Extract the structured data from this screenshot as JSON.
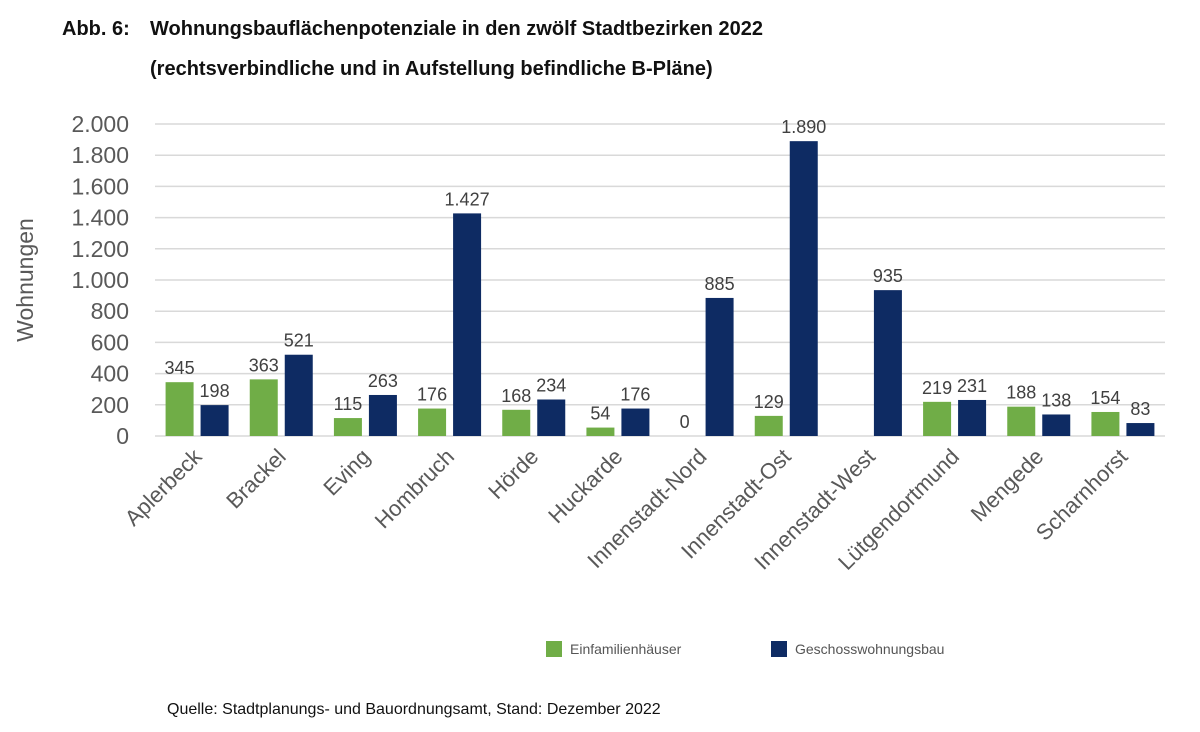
{
  "header": {
    "figure_label": "Abb. 6:",
    "title": "Wohnungsbauflächenpotenziale in den zwölf Stadtbezirken 2022",
    "subtitle": "(rechtsverbindliche und in Aufstellung befindliche B-Pläne)"
  },
  "chart_data": {
    "type": "bar",
    "ylabel": "Wohnungen",
    "xlabel": "",
    "ylim": [
      0,
      2000
    ],
    "yticks": [
      0,
      200,
      400,
      600,
      800,
      1000,
      1200,
      1400,
      1600,
      1800,
      2000
    ],
    "ytick_labels": [
      "0",
      "200",
      "400",
      "600",
      "800",
      "1.000",
      "1.200",
      "1.400",
      "1.600",
      "1.800",
      "2.000"
    ],
    "grid": true,
    "legend_position": "bottom",
    "categories": [
      "Aplerbeck",
      "Brackel",
      "Eving",
      "Hombruch",
      "Hörde",
      "Huckarde",
      "Innenstadt-Nord",
      "Innenstadt-Ost",
      "Innenstadt-West",
      "Lütgendortmund",
      "Mengede",
      "Scharnhorst"
    ],
    "series": [
      {
        "name": "Einfamilienhäuser",
        "color": "#70ad47",
        "values": [
          345,
          363,
          115,
          176,
          168,
          54,
          0,
          129,
          null,
          219,
          188,
          154
        ],
        "labels": [
          "345",
          "363",
          "115",
          "176",
          "168",
          "54",
          "0",
          "129",
          "",
          "219",
          "188",
          "154"
        ]
      },
      {
        "name": "Geschosswohnungsbau",
        "color": "#0e2b63",
        "values": [
          198,
          521,
          263,
          1427,
          234,
          176,
          885,
          1890,
          935,
          231,
          138,
          83
        ],
        "labels": [
          "198",
          "521",
          "263",
          "1.427",
          "234",
          "176",
          "885",
          "1.890",
          "935",
          "231",
          "138",
          "83"
        ]
      }
    ]
  },
  "source": "Quelle: Stadtplanungs- und Bauordnungsamt, Stand: Dezember 2022"
}
